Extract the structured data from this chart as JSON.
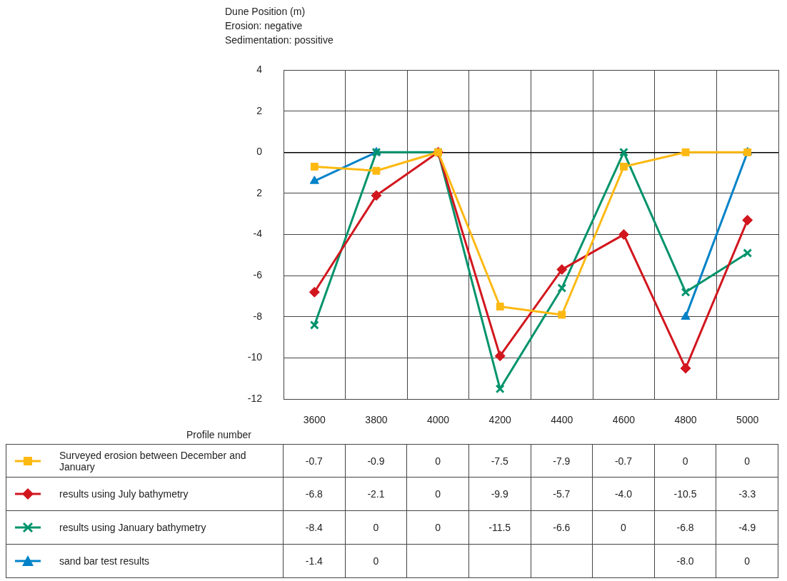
{
  "chart_data": {
    "type": "line",
    "ylabel": "Dune Position (m)",
    "xlabel": "Profile number",
    "annotations": [
      "Erosion: negative",
      "Sedimentation: possitive"
    ],
    "categories": [
      "3600",
      "3800",
      "4000",
      "4200",
      "4400",
      "4600",
      "4800",
      "5000"
    ],
    "ylim": [
      -12,
      4
    ],
    "yticks": [
      -12,
      -10,
      -8,
      -6,
      -4,
      {
        "value": -2,
        "label": "2"
      },
      0,
      2,
      4
    ],
    "grid": true,
    "legend": "bottom",
    "line_style": "solid",
    "series": [
      {
        "name": "Surveyed erosion between December and January",
        "color": "#fdb913",
        "marker": "square",
        "values": [
          -0.7,
          -0.9,
          0,
          -7.5,
          -7.9,
          -0.7,
          0,
          0
        ],
        "value_labels": [
          "-0.7",
          "-0.9",
          "0",
          "-7.5",
          "-7.9",
          "-0.7",
          "0",
          "0"
        ]
      },
      {
        "name": "results using July bathymetry",
        "color": "#d2161e",
        "marker": "diamond",
        "values": [
          -6.8,
          -2.1,
          0,
          -9.9,
          -5.7,
          -4.0,
          -10.5,
          -3.3
        ],
        "value_labels": [
          "-6.8",
          "-2.1",
          "0",
          "-9.9",
          "-5.7",
          "-4.0",
          "-10.5",
          "-3.3"
        ]
      },
      {
        "name": "results using January bathymetry",
        "color": "#00936b",
        "marker": "cross",
        "values": [
          -8.4,
          0,
          0,
          -11.5,
          -6.6,
          0,
          -6.8,
          -4.9
        ],
        "value_labels": [
          "-8.4",
          "0",
          "0",
          "-11.5",
          "-6.6",
          "0",
          "-6.8",
          "-4.9"
        ]
      },
      {
        "name": "sand bar test results",
        "color": "#0082c8",
        "marker": "triangle",
        "values": [
          -1.4,
          0,
          null,
          null,
          null,
          null,
          -8.0,
          0
        ],
        "value_labels": [
          "-1.4",
          "0",
          null,
          null,
          null,
          null,
          "-8.0",
          "0"
        ]
      }
    ]
  }
}
